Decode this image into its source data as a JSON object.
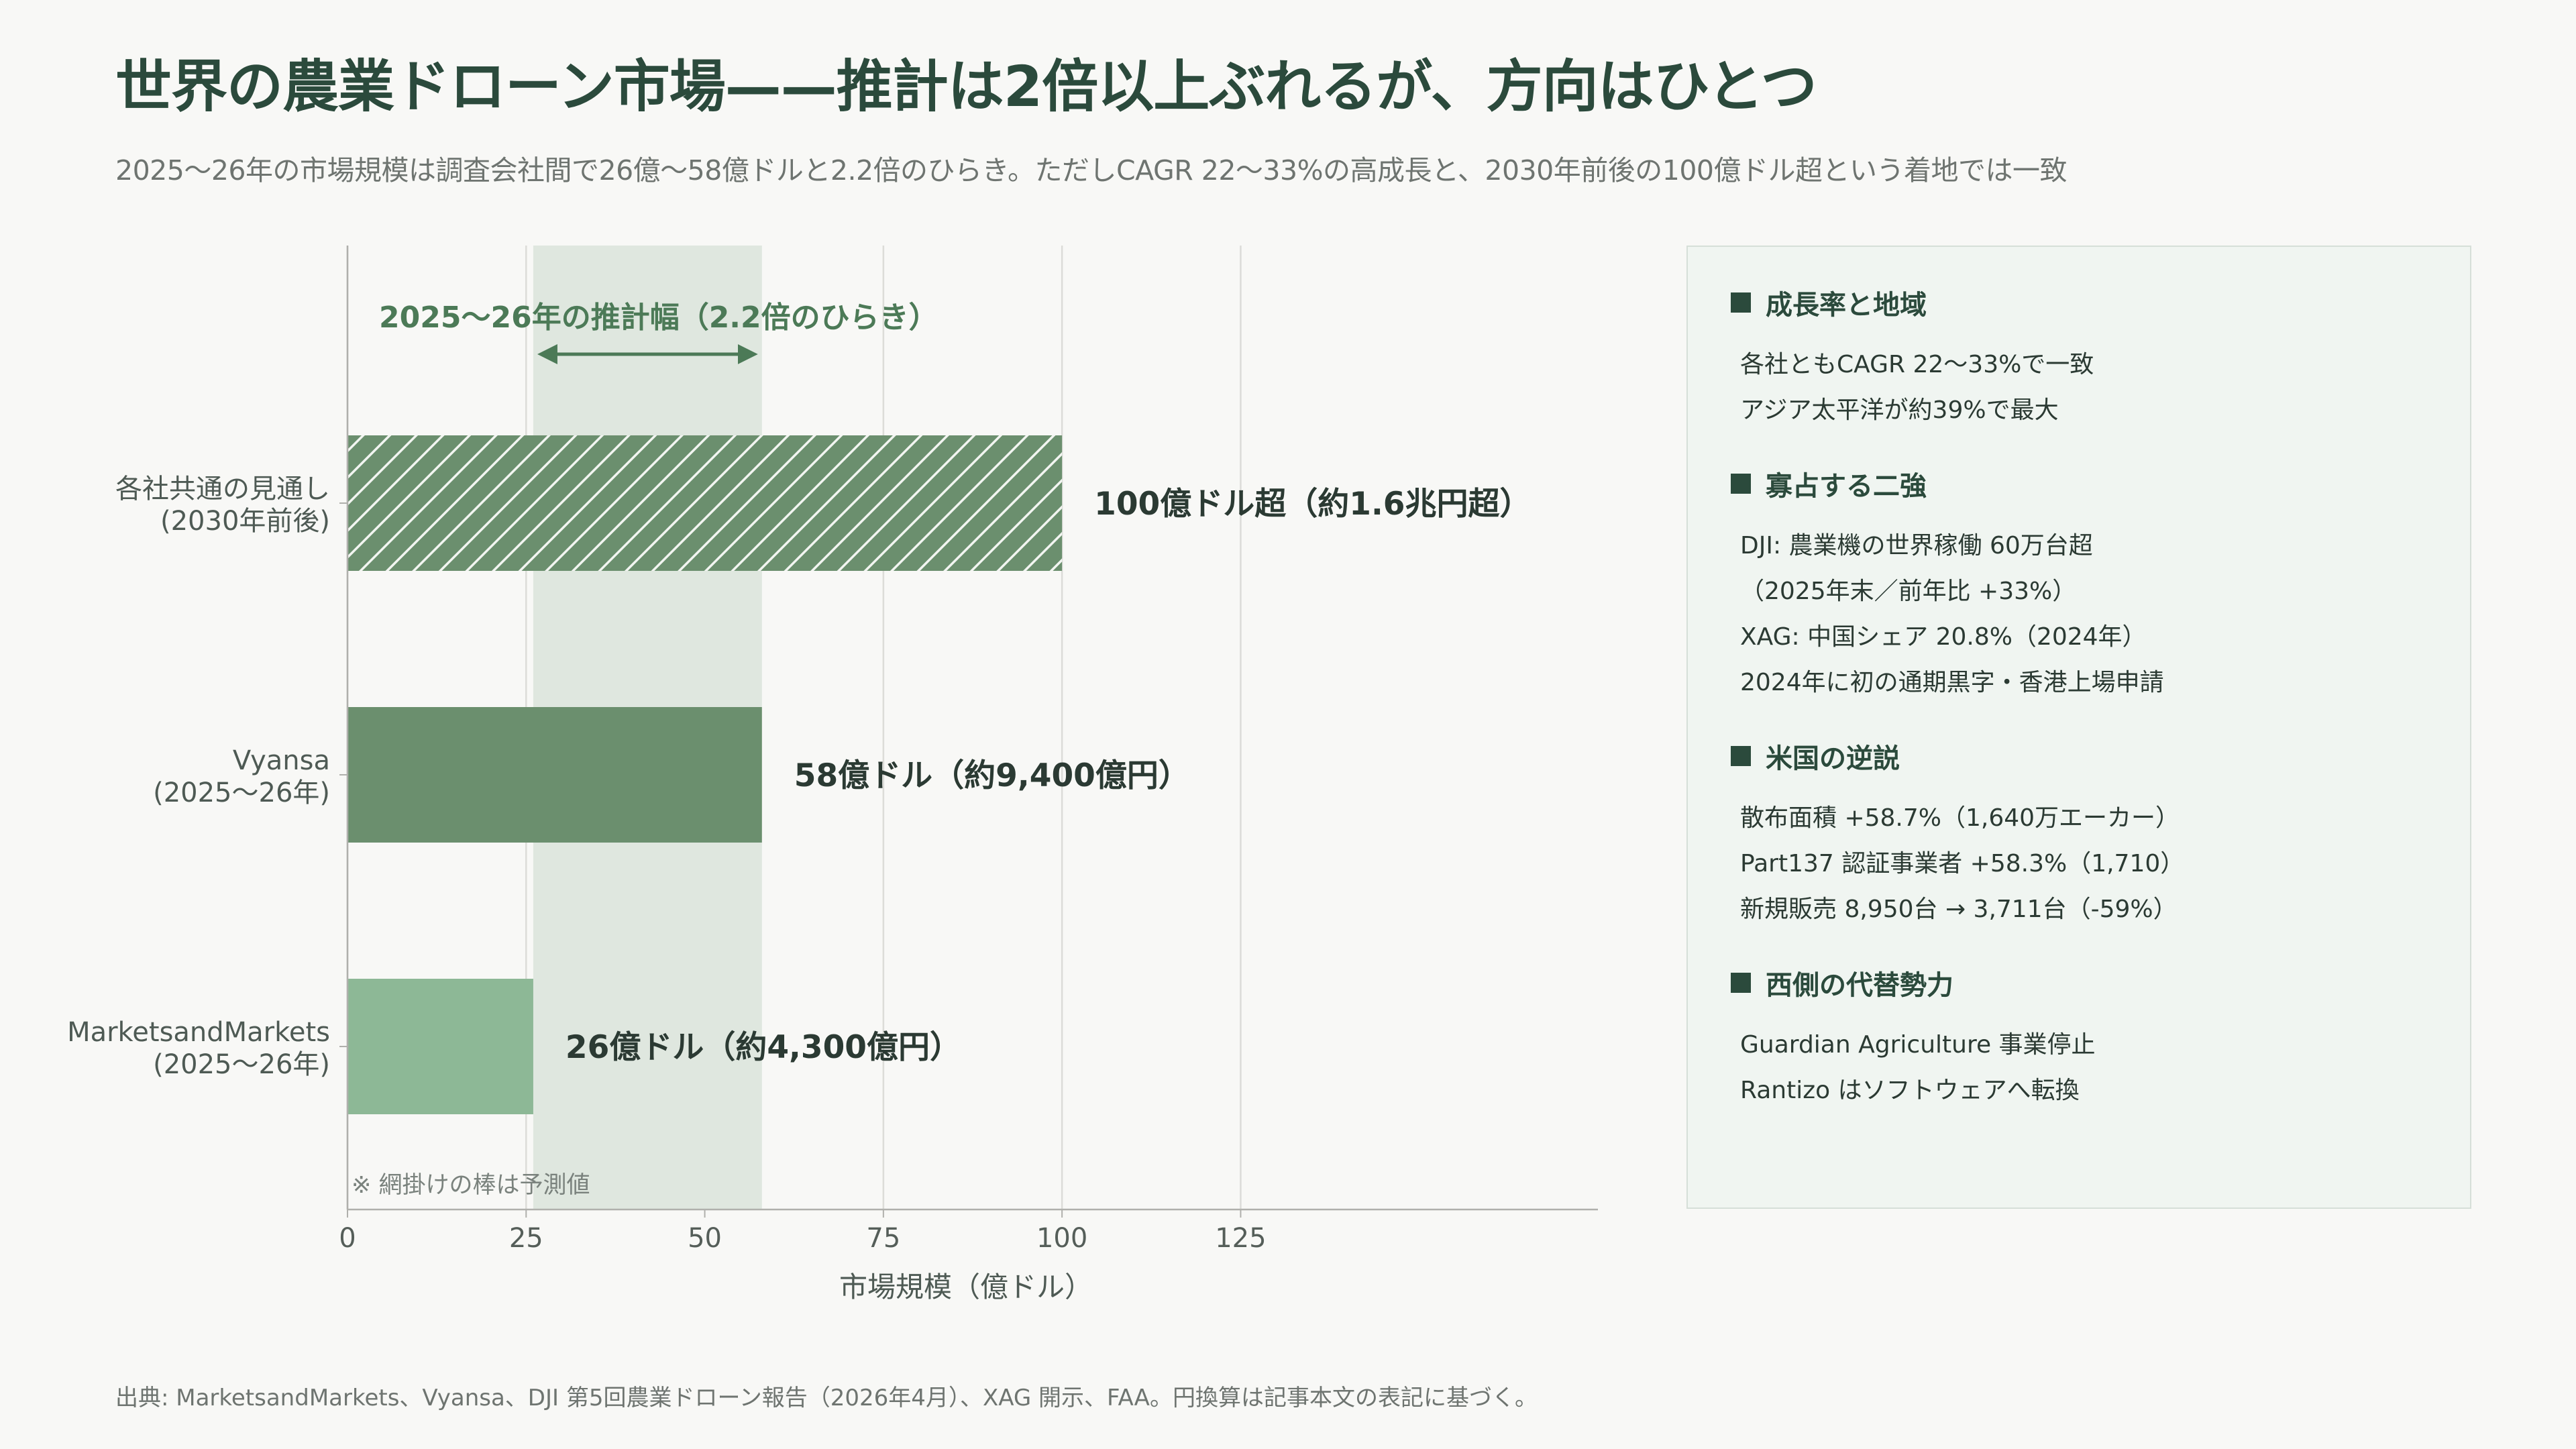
{
  "title": "世界の農業ドローン市場——推計は2倍以上ぶれるが、方向はひとつ",
  "subtitle": "2025〜26年の市場規模は調査会社間で26億〜58億ドルと2.2倍のひらき。ただしCAGR 22〜33%の高成長と、2030年前後の100億ドル超という着地では一致",
  "chart_data": {
    "type": "bar",
    "orientation": "horizontal",
    "categories": [
      [
        "各社共通の見通し",
        "(2030年前後)"
      ],
      [
        "Vyansa",
        "(2025〜26年)"
      ],
      [
        "MarketsandMarkets",
        "(2025〜26年)"
      ]
    ],
    "values": [
      100,
      58,
      26
    ],
    "forecast": [
      true,
      false,
      false
    ],
    "data_labels": [
      "100億ドル超（約1.6兆円超）",
      "58億ドル（約9,400億円）",
      "26億ドル（約4,300億円）"
    ],
    "bar_colors": [
      "#6b8f6e",
      "#6b8f6e",
      "#8db896"
    ],
    "xlabel": "市場規模（億ドル）",
    "xlim": [
      0,
      175
    ],
    "xticks": [
      0,
      25,
      50,
      75,
      100,
      125
    ],
    "grid": true,
    "band": {
      "from": 26,
      "to": 58,
      "label": "2025〜26年の推計幅（2.2倍のひらき）",
      "color": "#dfe7df",
      "label_color": "#4c7a57"
    },
    "note": "※ 網掛けの棒は予測値"
  },
  "panel": {
    "sections": [
      {
        "title": "成長率と地域",
        "items": [
          "各社ともCAGR 22〜33%で一致",
          "アジア太平洋が約39%で最大"
        ]
      },
      {
        "title": "寡占する二強",
        "items": [
          "DJI: 農業機の世界稼働 60万台超",
          "（2025年末／前年比 +33%）",
          "XAG: 中国シェア 20.8%（2024年）",
          "2024年に初の通期黒字・香港上場申請"
        ]
      },
      {
        "title": "米国の逆説",
        "items": [
          "散布面積 +58.7%（1,640万エーカー）",
          "Part137 認証事業者 +58.3%（1,710）",
          "新規販売 8,950台 → 3,711台（-59%）"
        ]
      },
      {
        "title": "西側の代替勢力",
        "items": [
          "Guardian Agriculture 事業停止",
          "Rantizo はソフトウェアへ転換"
        ]
      }
    ]
  },
  "footer": "出典: MarketsandMarkets、Vyansa、DJI 第5回農業ドローン報告（2026年4月）、XAG 開示、FAA。円換算は記事本文の表記に基づく。",
  "colors": {
    "title": "#2b4a3c",
    "muted": "#6e7470",
    "panel_bg": "#f0f5f1"
  }
}
